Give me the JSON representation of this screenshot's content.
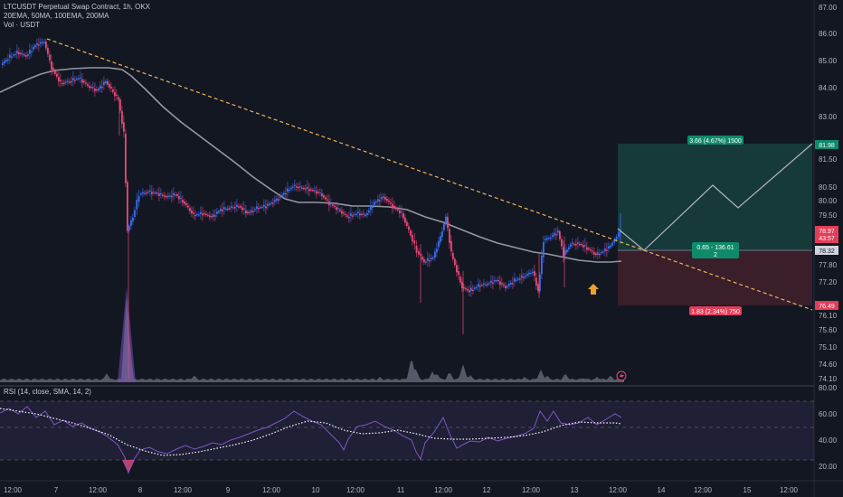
{
  "header": {
    "symbol_line": "LTCUSDT Perpetual Swap Contract, 1h, OKX",
    "indicators_line": "20EMA, 50MA, 100EMA, 200MA",
    "volume_line": "Vol · USDT"
  },
  "rsi_pane": {
    "title": "RSI (14, close, SMA, 14, 2)"
  },
  "colors": {
    "background": "#131722",
    "bull": "#3d6ef0",
    "bear": "#e8497a",
    "ma_line": "#9598a1",
    "trendline": "#f0b35a",
    "target_zone": "#163b3c",
    "stop_zone": "#3c1f2b",
    "target_badge": "#0f8a6a",
    "stop_badge": "#e23d58",
    "rsi_line": "#7e57c2",
    "volume": "#8c8fa0"
  },
  "price_axis": {
    "ticks": [
      "87.00",
      "86.00",
      "85.00",
      "84.00",
      "83.00",
      "82.00",
      "81.50",
      "80.50",
      "80.00",
      "79.50",
      "78.90",
      "77.80",
      "77.20",
      "76.10",
      "75.60",
      "75.10",
      "74.60",
      "74.10"
    ],
    "tags": [
      {
        "label": "81.98",
        "kind": "target",
        "price": 81.98
      },
      {
        "label": "78.97\n43:57",
        "kind": "current",
        "price": 78.97
      },
      {
        "label": "78.32",
        "kind": "entry",
        "price": 78.32
      },
      {
        "label": "76.49",
        "kind": "stop",
        "price": 76.49
      }
    ]
  },
  "rsi_axis": {
    "ticks": [
      "80.00",
      "60.00",
      "40.00",
      "20.00"
    ]
  },
  "time_axis": {
    "ticks": [
      "12:00",
      "7",
      "12:00",
      "8",
      "12:00",
      "9",
      "12:00",
      "10",
      "12:00",
      "11",
      "12:00",
      "12",
      "12:00",
      "13",
      "12:00",
      "14",
      "12:00",
      "15",
      "12:00"
    ]
  },
  "position_tool": {
    "target_label": "3.66 (4.67%) 1500",
    "center_label_1": "0.65 - 136.61",
    "center_label_2": "2",
    "stop_label": "1.83 (2.34%) 750"
  },
  "chart_data": {
    "type": "candlestick",
    "symbol": "LTCUSDT",
    "interval": "1h",
    "ylim": [
      73.8,
      87.3
    ],
    "entry_price": 78.32,
    "target_price": 81.98,
    "stop_price": 76.49,
    "last_price": 78.97
  }
}
